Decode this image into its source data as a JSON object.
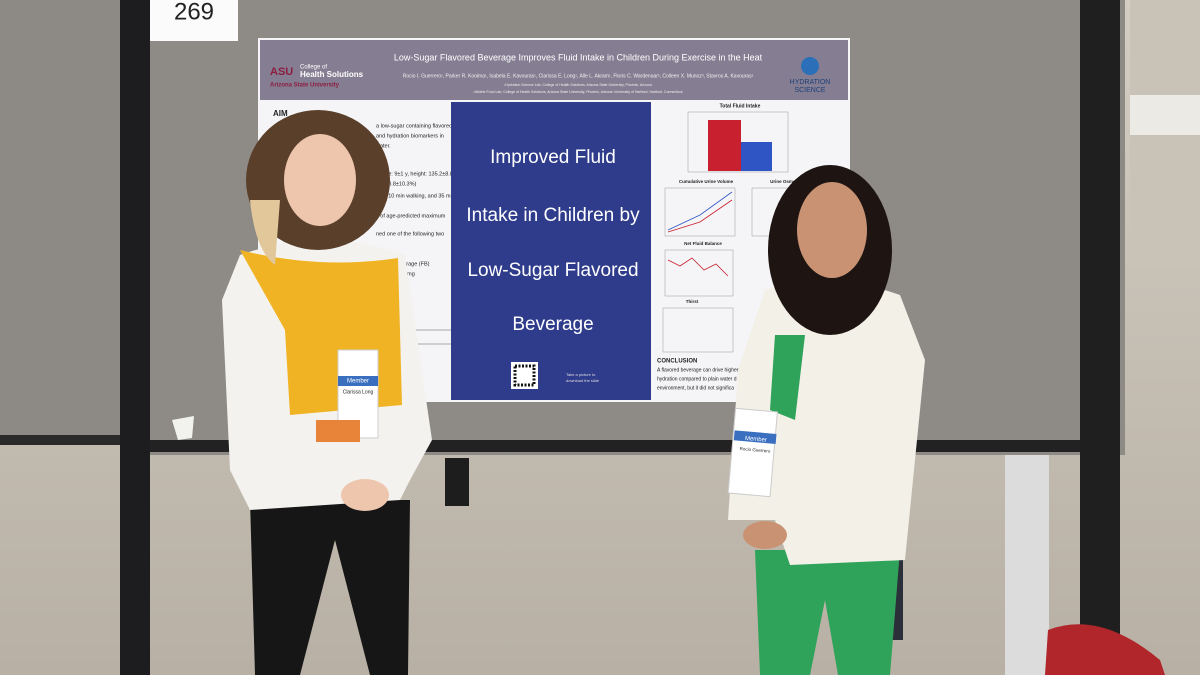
{
  "board_number": "269",
  "poster": {
    "title": "Low-Sugar Flavored Beverage Improves Fluid Intake in Children During Exercise in the Heat",
    "authors": "Rocio I. Guerrero¹, Parker R. Kooima¹, Isabela E. Kavouras¹, Clarissa E. Long¹, Alle L. Akram¹, Floris C. Wardenaar², Colleen X. Munoz³, Stavros A. Kavouras¹",
    "affiliations": [
      "¹Hydration Science Lab, College of Health Solutions, Arizona State University, Phoenix, Arizona",
      "²Athlete Food Lab, College of Health Solutions, Arizona State University, Phoenix, Arizona  ³University of Hartford, Hartford, Connecticut"
    ],
    "logo_left": {
      "mark": "ASU",
      "line1": "College of",
      "line2": "Health Solutions",
      "line3": "Arizona State University"
    },
    "logo_right": [
      "HYDRATION",
      "SCIENCE"
    ],
    "aim_heading": "AIM",
    "aim_lines": [
      "a low-sugar containing flavored",
      "and hydration biomarkers in",
      "water.",
      "1, age: 9±1 y, height: 135.2±8.8",
      "fat: 28.8±10.3%)",
      "rest, 10 min walking, and 35 min",
      "s of age-predicted maximum",
      "ned one of the following two",
      "pouch) beverage (FB)",
      "g stevia, 7.9 mg",
      "collected"
    ],
    "highlight": [
      "Improved Fluid",
      "Intake in Children by",
      "Low-Sugar Flavored",
      "Beverage"
    ],
    "chart_titles": [
      "Total Fluid Intake",
      "Cumulative Urine Volume",
      "Urine Osmolality",
      "Net Fluid Balance",
      "Thirst"
    ],
    "qr_caption": [
      "Take a picture to",
      "download the slide"
    ],
    "conclusion_heading": "CONCLUSION",
    "conclusion_lines": [
      "A flavored beverage can drive higher",
      "hydration compared to plain water d",
      "environment, but it did not significa"
    ]
  },
  "badges": [
    {
      "label": "Member",
      "name": "Clarissa Long"
    },
    {
      "label": "Member",
      "name": "Rocio Guerrero"
    }
  ]
}
